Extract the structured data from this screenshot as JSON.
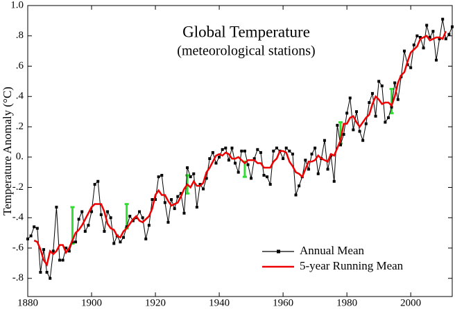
{
  "chart_data": {
    "type": "line",
    "title": "Global Temperature",
    "subtitle": "(meteorological stations)",
    "y_label": "Temperature Anomaly (°C)",
    "xlim": [
      1880,
      2013
    ],
    "ylim": [
      -0.92,
      1.0
    ],
    "xticks": [
      1880,
      1900,
      1920,
      1940,
      1960,
      1980,
      2000
    ],
    "yticks": [
      {
        "value": 1.0,
        "label": "1.0"
      },
      {
        "value": 0.8,
        "label": ".8"
      },
      {
        "value": 0.6,
        "label": ".6"
      },
      {
        "value": 0.4,
        "label": ".4"
      },
      {
        "value": 0.2,
        "label": ".2"
      },
      {
        "value": 0,
        "label": "0."
      },
      {
        "value": -0.2,
        "label": "-.2"
      },
      {
        "value": -0.4,
        "label": "-.4"
      },
      {
        "value": -0.6,
        "label": "-.6"
      },
      {
        "value": -0.8,
        "label": "-.8"
      }
    ],
    "legend": "lower right",
    "grid": false,
    "x": [
      1880,
      1881,
      1882,
      1883,
      1884,
      1885,
      1886,
      1887,
      1888,
      1889,
      1890,
      1891,
      1892,
      1893,
      1894,
      1895,
      1896,
      1897,
      1898,
      1899,
      1900,
      1901,
      1902,
      1903,
      1904,
      1905,
      1906,
      1907,
      1908,
      1909,
      1910,
      1911,
      1912,
      1913,
      1914,
      1915,
      1916,
      1917,
      1918,
      1919,
      1920,
      1921,
      1922,
      1923,
      1924,
      1925,
      1926,
      1927,
      1928,
      1929,
      1930,
      1931,
      1932,
      1933,
      1934,
      1935,
      1936,
      1937,
      1938,
      1939,
      1940,
      1941,
      1942,
      1943,
      1944,
      1945,
      1946,
      1947,
      1948,
      1949,
      1950,
      1951,
      1952,
      1953,
      1954,
      1955,
      1956,
      1957,
      1958,
      1959,
      1960,
      1961,
      1962,
      1963,
      1964,
      1965,
      1966,
      1967,
      1968,
      1969,
      1970,
      1971,
      1972,
      1973,
      1974,
      1975,
      1976,
      1977,
      1978,
      1979,
      1980,
      1981,
      1982,
      1983,
      1984,
      1985,
      1986,
      1987,
      1988,
      1989,
      1990,
      1991,
      1992,
      1993,
      1994,
      1995,
      1996,
      1997,
      1998,
      1999,
      2000,
      2001,
      2002,
      2003,
      2004,
      2005,
      2006,
      2007,
      2008,
      2009,
      2010,
      2011,
      2012,
      2013
    ],
    "series": [
      {
        "name": "Annual Mean",
        "color": "#000000",
        "marker": "square",
        "values": [
          -0.54,
          -0.52,
          -0.46,
          -0.47,
          -0.76,
          -0.61,
          -0.76,
          -0.8,
          -0.62,
          -0.33,
          -0.68,
          -0.68,
          -0.6,
          -0.62,
          -0.56,
          -0.56,
          -0.41,
          -0.36,
          -0.49,
          -0.45,
          -0.36,
          -0.18,
          -0.16,
          -0.38,
          -0.49,
          -0.36,
          -0.4,
          -0.57,
          -0.52,
          -0.56,
          -0.53,
          -0.46,
          -0.39,
          -0.42,
          -0.4,
          -0.36,
          -0.4,
          -0.54,
          -0.45,
          -0.28,
          -0.28,
          -0.13,
          -0.12,
          -0.3,
          -0.43,
          -0.28,
          -0.34,
          -0.26,
          -0.24,
          -0.37,
          -0.07,
          -0.13,
          -0.11,
          -0.33,
          -0.18,
          -0.21,
          -0.14,
          -0.01,
          0.03,
          -0.04,
          0.0,
          0.05,
          0.06,
          -0.02,
          0.06,
          -0.04,
          -0.1,
          0.04,
          0.04,
          -0.05,
          -0.14,
          -0.01,
          0.05,
          0.03,
          -0.12,
          -0.13,
          -0.18,
          0.04,
          0.06,
          0.04,
          -0.01,
          0.06,
          0.04,
          0.02,
          -0.25,
          -0.19,
          -0.13,
          -0.02,
          -0.08,
          0.02,
          0.06,
          -0.11,
          -0.01,
          0.11,
          -0.08,
          0.01,
          -0.16,
          0.21,
          0.08,
          0.15,
          0.29,
          0.39,
          0.18,
          0.3,
          0.17,
          0.11,
          0.22,
          0.36,
          0.42,
          0.27,
          0.5,
          0.47,
          0.23,
          0.26,
          0.33,
          0.49,
          0.38,
          0.53,
          0.7,
          0.61,
          0.59,
          0.74,
          0.8,
          0.79,
          0.72,
          0.87,
          0.79,
          0.83,
          0.64,
          0.78,
          0.91,
          0.78,
          0.81,
          0.86
        ]
      },
      {
        "name": "5-year Running Mean",
        "color": "#ee0000",
        "values": [
          null,
          null,
          -0.55,
          -0.56,
          -0.61,
          -0.68,
          -0.71,
          -0.62,
          -0.64,
          -0.62,
          -0.58,
          -0.58,
          -0.63,
          -0.6,
          -0.55,
          -0.5,
          -0.48,
          -0.45,
          -0.41,
          -0.37,
          -0.33,
          -0.31,
          -0.31,
          -0.31,
          -0.36,
          -0.44,
          -0.47,
          -0.48,
          -0.52,
          -0.53,
          -0.49,
          -0.47,
          -0.44,
          -0.41,
          -0.39,
          -0.42,
          -0.43,
          -0.41,
          -0.39,
          -0.34,
          -0.25,
          -0.22,
          -0.25,
          -0.25,
          -0.29,
          -0.32,
          -0.31,
          -0.3,
          -0.26,
          -0.21,
          -0.18,
          -0.2,
          -0.16,
          -0.19,
          -0.19,
          -0.17,
          -0.1,
          -0.07,
          -0.03,
          0.01,
          0.02,
          0.01,
          0.03,
          0.02,
          -0.01,
          -0.01,
          0,
          -0.02,
          -0.04,
          -0.02,
          -0.02,
          -0.02,
          -0.04,
          -0.04,
          -0.07,
          -0.07,
          -0.07,
          -0.03,
          -0.01,
          0.04,
          0.04,
          0.03,
          -0.03,
          -0.06,
          -0.1,
          -0.11,
          -0.13,
          -0.08,
          -0.03,
          -0.03,
          -0.02,
          0.01,
          -0.01,
          -0.02,
          -0.03,
          0.02,
          0.01,
          0.06,
          0.11,
          0.22,
          0.22,
          0.26,
          0.27,
          0.23,
          0.2,
          0.23,
          0.26,
          0.28,
          0.35,
          0.4,
          0.38,
          0.35,
          0.36,
          0.36,
          0.34,
          0.4,
          0.49,
          0.54,
          0.56,
          0.63,
          0.69,
          0.71,
          0.73,
          0.78,
          0.79,
          0.8,
          0.77,
          0.78,
          0.79,
          0.79,
          0.78,
          0.83,
          null,
          null
        ]
      }
    ],
    "error_bars": {
      "color": "#33dd33",
      "x": [
        1894,
        1911,
        1930,
        1948,
        1978,
        1994
      ],
      "values": [
        -0.45,
        -0.39,
        -0.18,
        -0.08,
        0.16,
        0.37
      ],
      "errors": [
        0.12,
        0.08,
        0.06,
        0.05,
        0.07,
        0.08
      ]
    }
  }
}
